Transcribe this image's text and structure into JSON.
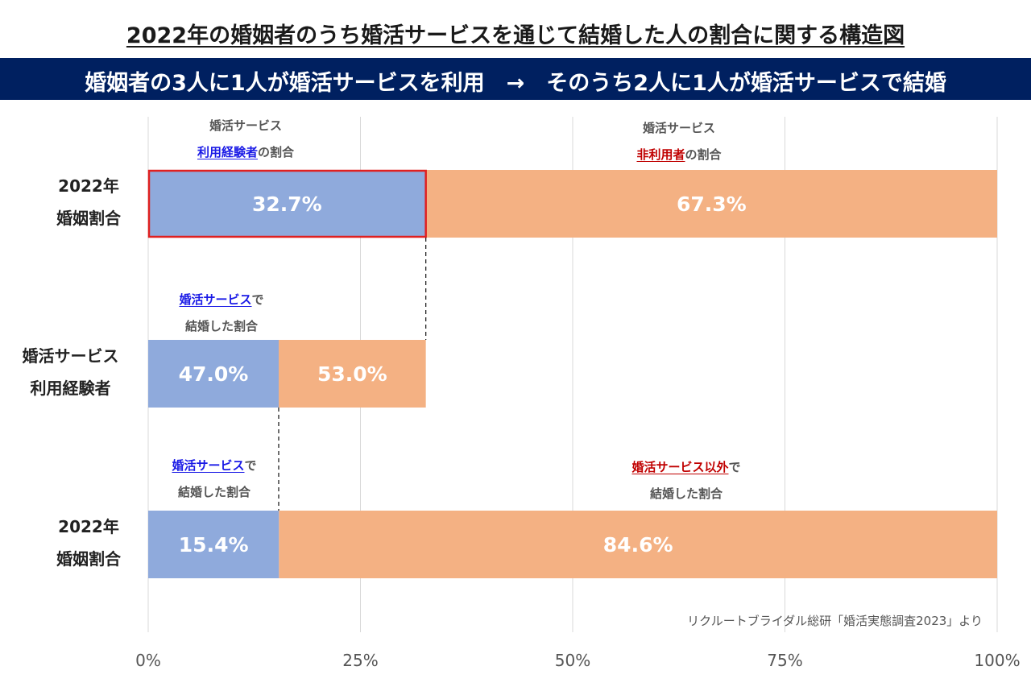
{
  "title": "2022年の婚姻者のうち婚活サービスを通じて結婚した人の割合に関する構造図",
  "banner": "婚姻者の3人に1人が婚活サービスを利用　→　そのうち2人に1人が婚活サービスで結婚",
  "source": "リクルートブライダル総研「婚活実態調査2023」より",
  "colors": {
    "banner_bg": "#002060",
    "blue_bar": "#8faadc",
    "orange_bar": "#f4b183",
    "highlight": "#e02020",
    "label_blue": "#1a1ae6",
    "label_red": "#c00000"
  },
  "row_labels": [
    {
      "line1": "2022年",
      "line2": "婚姻割合"
    },
    {
      "line1": "婚活サービス",
      "line2": "利用経験者"
    },
    {
      "line1": "2022年",
      "line2": "婚姻割合"
    }
  ],
  "annotations": {
    "a1": {
      "line1": "婚活サービス",
      "line2_colored": "利用経験者",
      "line2_rest": "の割合"
    },
    "a2": {
      "line1": "婚活サービス",
      "line2_colored": "非利用者",
      "line2_rest": "の割合"
    },
    "a3": {
      "line1_colored": "婚活サービス",
      "line1_rest": "で",
      "line2": "結婚した割合"
    },
    "a4": {
      "line1_colored": "婚活サービス",
      "line1_rest": "で",
      "line2": "結婚した割合"
    },
    "a5": {
      "line1_colored": "婚活サービス以外",
      "line1_rest": "で",
      "line2": "結婚した割合"
    }
  },
  "chart_data": {
    "type": "bar",
    "orientation": "horizontal",
    "stacked": true,
    "xlim": [
      0,
      100
    ],
    "xticks": [
      "0%",
      "25%",
      "50%",
      "75%",
      "100%"
    ],
    "grid": true,
    "rows": [
      {
        "segments": [
          {
            "value": 32.7,
            "label": "32.7%"
          },
          {
            "value": 67.3,
            "label": "67.3%"
          }
        ]
      },
      {
        "scale": 32.7,
        "segments": [
          {
            "value": 47.0,
            "label": "47.0%"
          },
          {
            "value": 53.0,
            "label": "53.0%"
          }
        ]
      },
      {
        "segments": [
          {
            "value": 15.4,
            "label": "15.4%"
          },
          {
            "value": 84.6,
            "label": "84.6%"
          }
        ]
      }
    ]
  }
}
